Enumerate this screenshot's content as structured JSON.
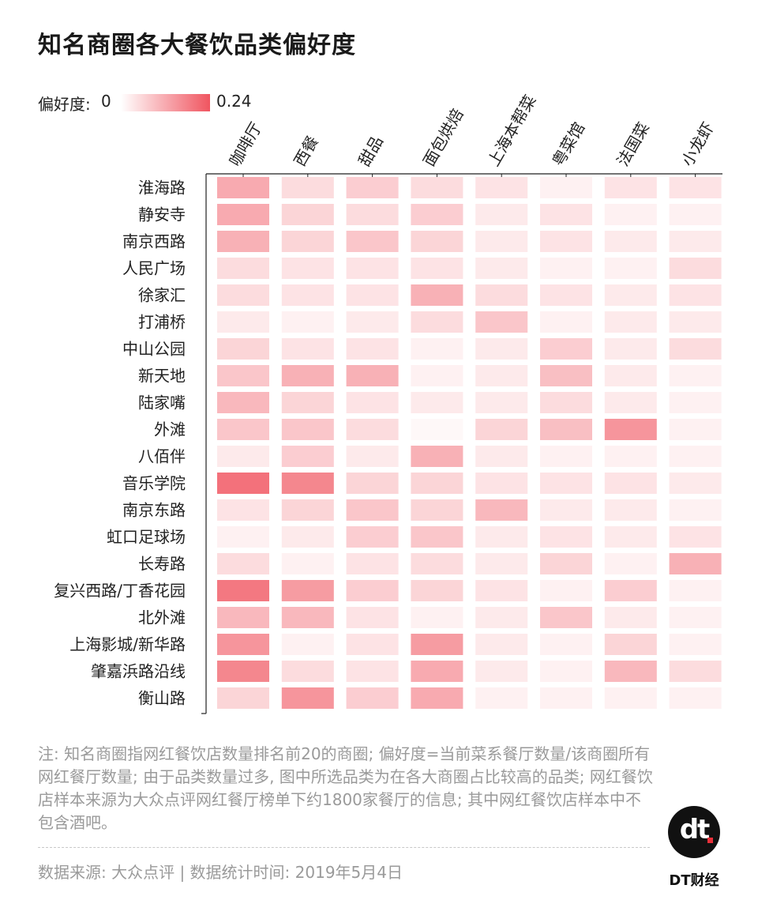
{
  "title": "知名商圈各大餐饮品类偏好度",
  "legend": {
    "label": "偏好度:",
    "min": "0",
    "max": "0.24",
    "min_color": "#ffffff",
    "max_color": "#f05560"
  },
  "chart_data": {
    "type": "heatmap",
    "title": "知名商圈各大餐饮品类偏好度",
    "scale": [
      0,
      0.24
    ],
    "columns": [
      "咖啡厅",
      "西餐",
      "甜品",
      "面包烘焙",
      "上海本帮菜",
      "粤菜馆",
      "法国菜",
      "小龙虾"
    ],
    "rows": [
      "淮海路",
      "静安寺",
      "南京西路",
      "人民广场",
      "徐家汇",
      "打浦桥",
      "中山公园",
      "新天地",
      "陆家嘴",
      "外滩",
      "八佰伴",
      "音乐学院",
      "南京东路",
      "虹口足球场",
      "长寿路",
      "复兴西路/丁香花园",
      "北外滩",
      "上海影城/新华路",
      "肇嘉浜路沿线",
      "衡山路"
    ],
    "values": [
      [
        0.12,
        0.05,
        0.07,
        0.05,
        0.04,
        0.02,
        0.04,
        0.04
      ],
      [
        0.12,
        0.06,
        0.05,
        0.07,
        0.03,
        0.04,
        0.02,
        0.02
      ],
      [
        0.11,
        0.06,
        0.08,
        0.06,
        0.03,
        0.04,
        0.03,
        0.03
      ],
      [
        0.05,
        0.04,
        0.04,
        0.04,
        0.03,
        0.02,
        0.02,
        0.05
      ],
      [
        0.05,
        0.04,
        0.04,
        0.11,
        0.05,
        0.04,
        0.03,
        0.04
      ],
      [
        0.03,
        0.02,
        0.03,
        0.05,
        0.08,
        0.02,
        0.03,
        0.03
      ],
      [
        0.06,
        0.04,
        0.04,
        0.02,
        0.03,
        0.07,
        0.03,
        0.05
      ],
      [
        0.08,
        0.11,
        0.11,
        0.02,
        0.03,
        0.09,
        0.03,
        0.02
      ],
      [
        0.1,
        0.06,
        0.04,
        0.03,
        0.03,
        0.05,
        0.03,
        0.02
      ],
      [
        0.08,
        0.08,
        0.05,
        0.01,
        0.06,
        0.09,
        0.15,
        0.02
      ],
      [
        0.03,
        0.07,
        0.03,
        0.11,
        0.03,
        0.02,
        0.02,
        0.02
      ],
      [
        0.2,
        0.17,
        0.06,
        0.06,
        0.04,
        0.04,
        0.04,
        0.03
      ],
      [
        0.04,
        0.06,
        0.08,
        0.06,
        0.1,
        0.03,
        0.03,
        0.02
      ],
      [
        0.02,
        0.03,
        0.07,
        0.08,
        0.03,
        0.04,
        0.03,
        0.04
      ],
      [
        0.05,
        0.02,
        0.04,
        0.05,
        0.03,
        0.06,
        0.02,
        0.11
      ],
      [
        0.19,
        0.14,
        0.07,
        0.06,
        0.04,
        0.02,
        0.07,
        0.02
      ],
      [
        0.1,
        0.1,
        0.04,
        0.02,
        0.03,
        0.08,
        0.03,
        0.02
      ],
      [
        0.15,
        0.02,
        0.04,
        0.14,
        0.03,
        0.02,
        0.06,
        0.02
      ],
      [
        0.17,
        0.05,
        0.04,
        0.12,
        0.03,
        0.02,
        0.1,
        0.05
      ],
      [
        0.06,
        0.15,
        0.07,
        0.12,
        0.02,
        0.02,
        0.02,
        0.02
      ]
    ]
  },
  "note": "注: 知名商圈指网红餐饮店数量排名前20的商圈; 偏好度=当前菜系餐厅数量/该商圈所有网红餐厅数量; 由于品类数量过多, 图中所选品类为在各大商圈占比较高的品类; 网红餐饮店样本来源为大众点评网红餐厅榜单下约1800家餐厅的信息; 其中网红餐饮店样本中不包含酒吧。",
  "source": "数据来源: 大众点评 | 数据统计时间: 2019年5月4日",
  "brand": {
    "logo_text": "dt",
    "name": "DT财经"
  }
}
